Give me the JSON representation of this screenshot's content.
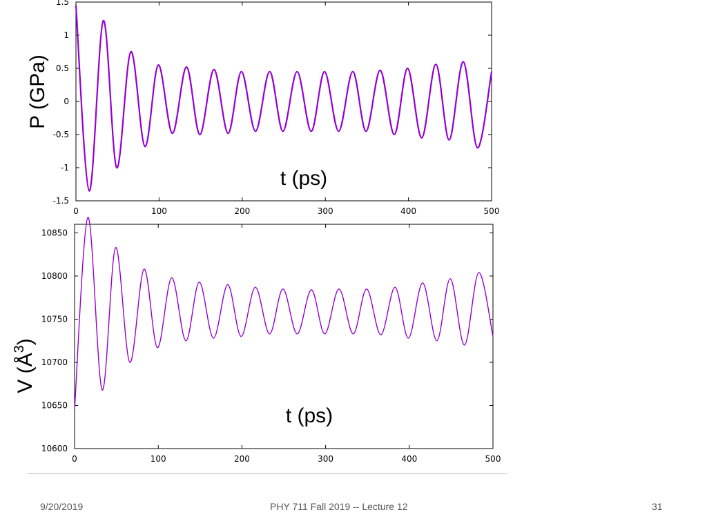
{
  "chart_data": [
    {
      "type": "line",
      "ylabel": "P (GPa)",
      "xlabel": "t (ps)",
      "xlim": [
        0,
        500
      ],
      "ylim": [
        -1.5,
        1.5
      ],
      "xticks": [
        "0",
        "100",
        "200",
        "300",
        "400",
        "500"
      ],
      "yticks": [
        "-1.5",
        "-1",
        "-0.5",
        "0",
        "0.5",
        "1",
        "1.5"
      ],
      "grid": false,
      "color": "#9400d3",
      "series": [
        {
          "x": [
            0,
            16,
            33,
            49,
            66,
            83,
            99,
            116,
            133,
            149,
            166,
            183,
            199,
            216,
            233,
            249,
            266,
            283,
            299,
            316,
            333,
            349,
            366,
            383,
            399,
            416,
            433,
            449,
            466,
            483,
            500
          ],
          "values": [
            1.45,
            -1.35,
            1.22,
            -1.0,
            0.75,
            -0.68,
            0.55,
            -0.48,
            0.52,
            -0.5,
            0.48,
            -0.48,
            0.45,
            -0.45,
            0.45,
            -0.45,
            0.45,
            -0.45,
            0.45,
            -0.45,
            0.45,
            -0.45,
            0.47,
            -0.5,
            0.5,
            -0.55,
            0.56,
            -0.58,
            0.6,
            -0.7,
            0.45
          ]
        }
      ]
    },
    {
      "type": "line",
      "ylabel": "V (Å3)",
      "xlabel": "t (ps)",
      "xlim": [
        0,
        500
      ],
      "ylim": [
        10600,
        10860
      ],
      "xticks": [
        "0",
        "100",
        "200",
        "300",
        "400",
        "500"
      ],
      "yticks": [
        "10600",
        "10650",
        "10700",
        "10750",
        "10800",
        "10850"
      ],
      "grid": false,
      "color": "#9400d3",
      "series": [
        {
          "x": [
            0,
            16,
            33,
            49,
            66,
            83,
            99,
            116,
            133,
            149,
            166,
            183,
            199,
            216,
            233,
            249,
            266,
            283,
            299,
            316,
            333,
            349,
            366,
            383,
            399,
            416,
            433,
            449,
            466,
            483,
            500
          ],
          "values": [
            10645,
            10868,
            10668,
            10833,
            10700,
            10808,
            10717,
            10798,
            10725,
            10793,
            10728,
            10790,
            10730,
            10787,
            10733,
            10785,
            10733,
            10784,
            10733,
            10785,
            10733,
            10785,
            10732,
            10787,
            10728,
            10792,
            10725,
            10797,
            10720,
            10804,
            10730
          ]
        }
      ]
    }
  ],
  "footer": {
    "date": "9/20/2019",
    "course": "PHY 711  Fall 2019 -- Lecture 12",
    "page": "31"
  }
}
